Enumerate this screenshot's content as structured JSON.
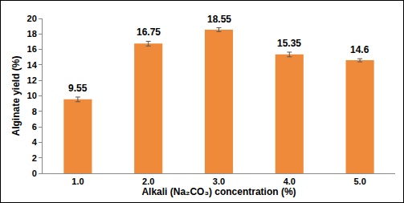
{
  "chart_data": {
    "type": "bar",
    "categories": [
      "1.0",
      "2.0",
      "3.0",
      "4.0",
      "5.0"
    ],
    "values": [
      9.55,
      16.75,
      18.55,
      15.35,
      14.6
    ],
    "errors": [
      0.3,
      0.3,
      0.25,
      0.3,
      0.2
    ],
    "color": "#ef8a3a",
    "x_label": "Alkali (Na₂CO₃) concentration (%)",
    "y_label": "Alginate yield (%)",
    "ylim": [
      0,
      20
    ],
    "yticks": [
      0,
      2,
      4,
      6,
      8,
      10,
      12,
      14,
      16,
      18,
      20
    ],
    "grid": false,
    "data_labels": true
  }
}
